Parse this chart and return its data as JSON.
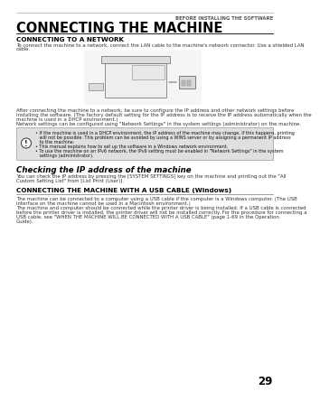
{
  "page_num": "29",
  "header_text": "BEFORE INSTALLING THE SOFTWARE",
  "title": "CONNECTING THE MACHINE",
  "section1_heading": "CONNECTING TO A NETWORK",
  "section1_body_line1": "To connect the machine to a network, connect the LAN cable to the machine's network connector. Use a shielded LAN",
  "section1_body_line2": "cable.",
  "section1_body2_lines": [
    "After connecting the machine to a network, be sure to configure the IP address and other network settings before",
    "installing the software. (The factory default setting for the IP address is to receive the IP address automatically when the",
    "machine is used in a DHCP environment.)",
    "Network settings can be configured using \"Network Settings\" in the system settings (administrator) on the machine."
  ],
  "warning_bullets": [
    "If the machine is used in a DHCP environment, the IP address of the machine may change. If this happens, printing",
    "will not be possible. This problem can be avoided by using a WINS server or by assigning a permanent IP address",
    "to the machine.",
    "This manual explains how to set up the software in a Windows network environment.",
    "To use the machine on an IPv6 network, the IPv6 setting must be enabled in \"Network Settings\" in the system",
    "settings (administrator)."
  ],
  "warning_bullet_groups": [
    3,
    1,
    2
  ],
  "section2_heading": "Checking the IP address of the machine",
  "section2_body_lines": [
    "You can check the IP address by pressing the [SYSTEM SETTINGS] key on the machine and printing out the \"All",
    "Custom Setting List\" from [List Print (User)]."
  ],
  "section3_heading": "CONNECTING THE MACHINE WITH A USB CABLE (Windows)",
  "section3_body_lines": [
    "The machine can be connected to a computer using a USB cable if the computer is a Windows computer. (The USB",
    "interface on the machine cannot be used in a Macintosh environment.)",
    "The machine and computer should be connected while the printer driver is being installed. If a USB cable is connected",
    "before the printer driver is installed, the printer driver will not be installed correctly. For the procedure for connecting a",
    "USB cable, see \"WHEN THE MACHINE WILL BE CONNECTED WITH A USB CABLE\" (page 1-69 in the Operation",
    "Guide)."
  ],
  "bg_color": "#ffffff",
  "header_color": "#555555",
  "title_color": "#000000",
  "section1_heading_color": "#000000",
  "section2_heading_color": "#000000",
  "section3_heading_color": "#000000",
  "body_color": "#333333",
  "warning_bg": "#e0e0e0",
  "warning_border": "#999999",
  "line_color": "#aaaaaa"
}
